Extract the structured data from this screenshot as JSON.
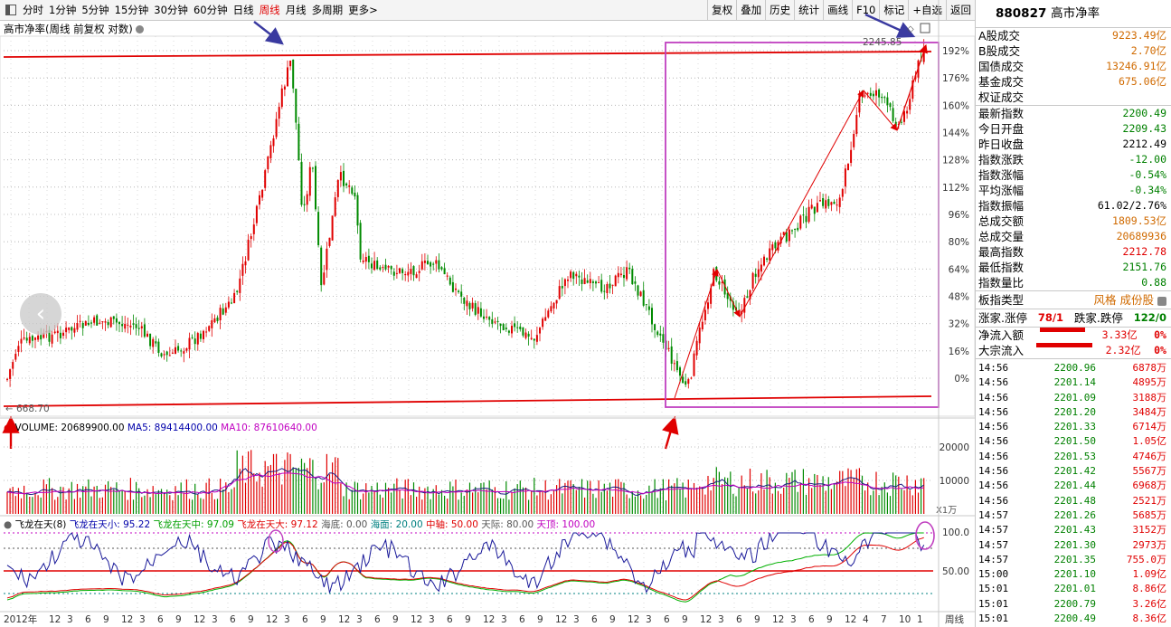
{
  "toolbar": {
    "periods": [
      "分时",
      "1分钟",
      "5分钟",
      "15分钟",
      "30分钟",
      "60分钟",
      "日线",
      "周线",
      "月线",
      "多周期",
      "更多>"
    ],
    "active_period": "周线",
    "buttons": [
      "复权",
      "叠加",
      "历史",
      "统计",
      "画线",
      "F10",
      "标记",
      "+自选",
      "返回"
    ]
  },
  "chart_title": "高市净率(周线 前复权 对数)",
  "price_marks": {
    "high": "2245.85",
    "low": "668.70"
  },
  "volume_label": {
    "main": "VOLUME: 20689900.00",
    "ma5": "MA5: 89414400.00",
    "ma10": "MA10: 87610640.00"
  },
  "volume_unit": "X1万",
  "indicator_label": {
    "name": "飞龙在天(8)",
    "small": "飞龙在天小: 95.22",
    "mid": "飞龙在天中: 97.09",
    "big": "飞龙在天大: 97.12",
    "floor": "海底: 0.00",
    "sea": "海面: 20.00",
    "axis": "中轴: 50.00",
    "sky": "天际: 80.00",
    "top": "天顶: 100.00"
  },
  "x_axis": {
    "start": "2012年",
    "end": "周线",
    "ticks": [
      "6",
      "9",
      "12",
      "3",
      "6",
      "9",
      "12",
      "3",
      "6",
      "9",
      "12",
      "3",
      "6",
      "9",
      "12",
      "3",
      "6",
      "9",
      "12",
      "3",
      "6",
      "9",
      "12",
      "3",
      "6",
      "9",
      "12",
      "3",
      "6",
      "9",
      "12",
      "3",
      "6",
      "9",
      "12",
      "3",
      "6",
      "9",
      "12",
      "3",
      "6",
      "9",
      "12",
      "3",
      "6",
      "9",
      "12",
      "4",
      "7",
      "10",
      "1"
    ]
  },
  "chart_data": {
    "type": "candlestick",
    "scale": "log",
    "y_ticks_pct": [
      "192%",
      "176%",
      "160%",
      "144%",
      "128%",
      "112%",
      "96%",
      "80%",
      "64%",
      "48%",
      "32%",
      "16%",
      "0%"
    ],
    "volume_ticks": [
      "20000",
      "10000"
    ],
    "indicator_ticks": [
      "100.0",
      "50.00"
    ],
    "price_high": 2245.85,
    "price_low": 668.7
  },
  "right_panel": {
    "code": "880827",
    "name": "高市净率",
    "turnover": [
      {
        "k": "A股成交",
        "v": "9223.49亿",
        "c": "orange"
      },
      {
        "k": "B股成交",
        "v": "2.70亿",
        "c": "orange"
      },
      {
        "k": "国债成交",
        "v": "13246.91亿",
        "c": "orange"
      },
      {
        "k": "基金成交",
        "v": "675.06亿",
        "c": "orange"
      },
      {
        "k": "权证成交",
        "v": "",
        "c": "orange"
      }
    ],
    "index": [
      {
        "k": "最新指数",
        "v": "2200.49",
        "c": "green"
      },
      {
        "k": "今日开盘",
        "v": "2209.43",
        "c": "green"
      },
      {
        "k": "昨日收盘",
        "v": "2212.49",
        "c": "blk"
      },
      {
        "k": "指数涨跌",
        "v": "-12.00",
        "c": "green"
      },
      {
        "k": "指数涨幅",
        "v": "-0.54%",
        "c": "green"
      },
      {
        "k": "平均涨幅",
        "v": "-0.34%",
        "c": "green"
      },
      {
        "k": "指数振幅",
        "v": "61.02/2.76%",
        "c": "blk"
      },
      {
        "k": "总成交额",
        "v": "1809.53亿",
        "c": "orange"
      },
      {
        "k": "总成交量",
        "v": "20689936",
        "c": "orange"
      },
      {
        "k": "最高指数",
        "v": "2212.78",
        "c": "red"
      },
      {
        "k": "最低指数",
        "v": "2151.76",
        "c": "green"
      },
      {
        "k": "指数量比",
        "v": "0.88",
        "c": "green"
      }
    ],
    "board_type_label": "板指类型",
    "board_type_value": "风格 成份股",
    "limit_up_label": "涨家.涨停",
    "limit_up_value": "78/1",
    "limit_down_label": "跌家.跌停",
    "limit_down_value": "122/0",
    "net_inflow_label": "净流入额",
    "net_inflow_value": "3.33亿",
    "net_inflow_pct": "0%",
    "block_inflow_label": "大宗流入",
    "block_inflow_value": "2.32亿",
    "block_inflow_pct": "0%",
    "ticks": [
      {
        "t": "14:56",
        "p": "2200.96",
        "q": "6878万"
      },
      {
        "t": "14:56",
        "p": "2201.14",
        "q": "4895万"
      },
      {
        "t": "14:56",
        "p": "2201.09",
        "q": "3188万"
      },
      {
        "t": "14:56",
        "p": "2201.20",
        "q": "3484万"
      },
      {
        "t": "14:56",
        "p": "2201.33",
        "q": "6714万"
      },
      {
        "t": "14:56",
        "p": "2201.50",
        "q": "1.05亿"
      },
      {
        "t": "14:56",
        "p": "2201.53",
        "q": "4746万"
      },
      {
        "t": "14:56",
        "p": "2201.42",
        "q": "5567万"
      },
      {
        "t": "14:56",
        "p": "2201.44",
        "q": "6968万"
      },
      {
        "t": "14:56",
        "p": "2201.48",
        "q": "2521万"
      },
      {
        "t": "14:57",
        "p": "2201.26",
        "q": "5685万"
      },
      {
        "t": "14:57",
        "p": "2201.43",
        "q": "3152万"
      },
      {
        "t": "14:57",
        "p": "2201.30",
        "q": "2973万"
      },
      {
        "t": "14:57",
        "p": "2201.35",
        "q": "755.0万"
      },
      {
        "t": "15:00",
        "p": "2201.10",
        "q": "1.09亿"
      },
      {
        "t": "15:01",
        "p": "2201.01",
        "q": "8.86亿"
      },
      {
        "t": "15:01",
        "p": "2200.79",
        "q": "3.26亿"
      },
      {
        "t": "15:01",
        "p": "2200.49",
        "q": "8.36亿"
      }
    ]
  }
}
